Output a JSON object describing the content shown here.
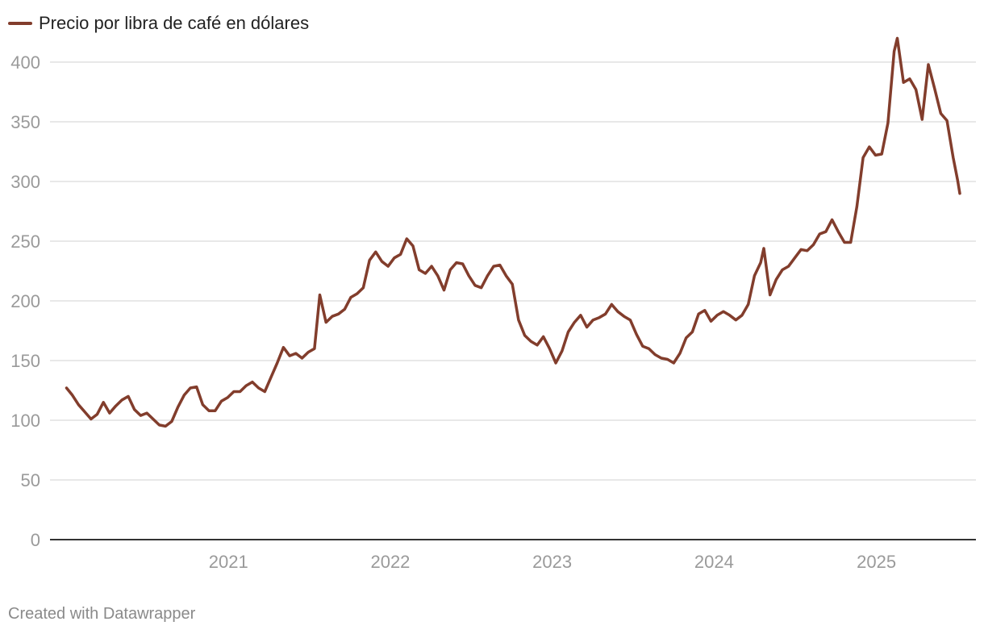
{
  "colors": {
    "series": "#823d2c",
    "grid": "#e0e0e0",
    "axis": "#333333",
    "tick_text": "#9a9a9a",
    "credit_text": "#8a8a8a"
  },
  "credit": "Created with Datawrapper",
  "chart_data": {
    "type": "line",
    "title": "",
    "xlabel": "",
    "ylabel": "",
    "ylim": [
      0,
      425
    ],
    "xlim": [
      "2020-01-01",
      "2025-07-08"
    ],
    "yticks": [
      0,
      50,
      100,
      150,
      200,
      250,
      300,
      350,
      400
    ],
    "xticks": [
      "2021",
      "2022",
      "2023",
      "2024",
      "2025"
    ],
    "grid": true,
    "legend": "top-left",
    "series": [
      {
        "name": "Precio por libra de café en dólares",
        "points": [
          [
            "2020-01-02",
            127
          ],
          [
            "2020-01-15",
            121
          ],
          [
            "2020-01-29",
            113
          ],
          [
            "2020-02-12",
            107
          ],
          [
            "2020-02-26",
            101
          ],
          [
            "2020-03-11",
            105
          ],
          [
            "2020-03-25",
            115
          ],
          [
            "2020-04-08",
            106
          ],
          [
            "2020-04-22",
            112
          ],
          [
            "2020-05-06",
            117
          ],
          [
            "2020-05-20",
            120
          ],
          [
            "2020-06-03",
            109
          ],
          [
            "2020-06-17",
            104
          ],
          [
            "2020-07-01",
            106
          ],
          [
            "2020-07-15",
            101
          ],
          [
            "2020-07-29",
            96
          ],
          [
            "2020-08-12",
            95
          ],
          [
            "2020-08-26",
            99
          ],
          [
            "2020-09-09",
            111
          ],
          [
            "2020-09-23",
            121
          ],
          [
            "2020-10-07",
            127
          ],
          [
            "2020-10-21",
            128
          ],
          [
            "2020-11-04",
            113
          ],
          [
            "2020-11-18",
            108
          ],
          [
            "2020-12-02",
            108
          ],
          [
            "2020-12-16",
            116
          ],
          [
            "2020-12-30",
            119
          ],
          [
            "2021-01-13",
            124
          ],
          [
            "2021-01-27",
            124
          ],
          [
            "2021-02-10",
            129
          ],
          [
            "2021-02-24",
            132
          ],
          [
            "2021-03-10",
            127
          ],
          [
            "2021-03-24",
            124
          ],
          [
            "2021-04-07",
            136
          ],
          [
            "2021-04-21",
            148
          ],
          [
            "2021-05-05",
            161
          ],
          [
            "2021-05-19",
            154
          ],
          [
            "2021-06-02",
            156
          ],
          [
            "2021-06-16",
            152
          ],
          [
            "2021-06-30",
            157
          ],
          [
            "2021-07-14",
            160
          ],
          [
            "2021-07-26",
            205
          ],
          [
            "2021-08-09",
            182
          ],
          [
            "2021-08-23",
            187
          ],
          [
            "2021-09-06",
            189
          ],
          [
            "2021-09-20",
            193
          ],
          [
            "2021-10-04",
            203
          ],
          [
            "2021-10-18",
            206
          ],
          [
            "2021-11-01",
            211
          ],
          [
            "2021-11-15",
            234
          ],
          [
            "2021-11-29",
            241
          ],
          [
            "2021-12-13",
            233
          ],
          [
            "2021-12-27",
            229
          ],
          [
            "2022-01-10",
            236
          ],
          [
            "2022-01-24",
            239
          ],
          [
            "2022-02-07",
            252
          ],
          [
            "2022-02-21",
            246
          ],
          [
            "2022-03-07",
            226
          ],
          [
            "2022-03-21",
            223
          ],
          [
            "2022-04-04",
            229
          ],
          [
            "2022-04-18",
            221
          ],
          [
            "2022-05-02",
            209
          ],
          [
            "2022-05-16",
            226
          ],
          [
            "2022-05-30",
            232
          ],
          [
            "2022-06-13",
            231
          ],
          [
            "2022-06-27",
            221
          ],
          [
            "2022-07-11",
            213
          ],
          [
            "2022-07-25",
            211
          ],
          [
            "2022-08-08",
            221
          ],
          [
            "2022-08-22",
            229
          ],
          [
            "2022-09-05",
            230
          ],
          [
            "2022-09-19",
            221
          ],
          [
            "2022-10-03",
            214
          ],
          [
            "2022-10-17",
            184
          ],
          [
            "2022-10-31",
            171
          ],
          [
            "2022-11-14",
            166
          ],
          [
            "2022-11-28",
            163
          ],
          [
            "2022-12-12",
            170
          ],
          [
            "2022-12-26",
            160
          ],
          [
            "2023-01-09",
            148
          ],
          [
            "2023-01-23",
            158
          ],
          [
            "2023-02-06",
            174
          ],
          [
            "2023-02-20",
            182
          ],
          [
            "2023-03-06",
            188
          ],
          [
            "2023-03-20",
            178
          ],
          [
            "2023-04-03",
            184
          ],
          [
            "2023-04-17",
            186
          ],
          [
            "2023-05-01",
            189
          ],
          [
            "2023-05-15",
            197
          ],
          [
            "2023-05-29",
            191
          ],
          [
            "2023-06-12",
            187
          ],
          [
            "2023-06-26",
            184
          ],
          [
            "2023-07-10",
            172
          ],
          [
            "2023-07-24",
            162
          ],
          [
            "2023-08-07",
            160
          ],
          [
            "2023-08-21",
            155
          ],
          [
            "2023-09-04",
            152
          ],
          [
            "2023-09-18",
            151
          ],
          [
            "2023-10-02",
            148
          ],
          [
            "2023-10-16",
            156
          ],
          [
            "2023-10-30",
            169
          ],
          [
            "2023-11-13",
            174
          ],
          [
            "2023-11-27",
            189
          ],
          [
            "2023-12-11",
            192
          ],
          [
            "2023-12-25",
            183
          ],
          [
            "2024-01-08",
            188
          ],
          [
            "2024-01-22",
            191
          ],
          [
            "2024-02-05",
            188
          ],
          [
            "2024-02-19",
            184
          ],
          [
            "2024-03-04",
            188
          ],
          [
            "2024-03-18",
            197
          ],
          [
            "2024-04-01",
            221
          ],
          [
            "2024-04-15",
            232
          ],
          [
            "2024-04-22",
            244
          ],
          [
            "2024-05-06",
            205
          ],
          [
            "2024-05-20",
            218
          ],
          [
            "2024-06-03",
            226
          ],
          [
            "2024-06-17",
            229
          ],
          [
            "2024-07-01",
            236
          ],
          [
            "2024-07-15",
            243
          ],
          [
            "2024-07-29",
            242
          ],
          [
            "2024-08-12",
            247
          ],
          [
            "2024-08-26",
            256
          ],
          [
            "2024-09-09",
            258
          ],
          [
            "2024-09-23",
            268
          ],
          [
            "2024-10-07",
            258
          ],
          [
            "2024-10-21",
            249
          ],
          [
            "2024-11-04",
            249
          ],
          [
            "2024-11-18",
            279
          ],
          [
            "2024-12-02",
            320
          ],
          [
            "2024-12-16",
            329
          ],
          [
            "2024-12-30",
            322
          ],
          [
            "2025-01-13",
            323
          ],
          [
            "2025-01-27",
            349
          ],
          [
            "2025-02-10",
            409
          ],
          [
            "2025-02-17",
            420
          ],
          [
            "2025-03-03",
            383
          ],
          [
            "2025-03-17",
            386
          ],
          [
            "2025-03-31",
            377
          ],
          [
            "2025-04-14",
            352
          ],
          [
            "2025-04-28",
            398
          ],
          [
            "2025-05-12",
            378
          ],
          [
            "2025-05-26",
            357
          ],
          [
            "2025-06-09",
            351
          ],
          [
            "2025-06-23",
            320
          ],
          [
            "2025-07-03",
            301
          ],
          [
            "2025-07-08",
            290
          ]
        ]
      }
    ]
  }
}
